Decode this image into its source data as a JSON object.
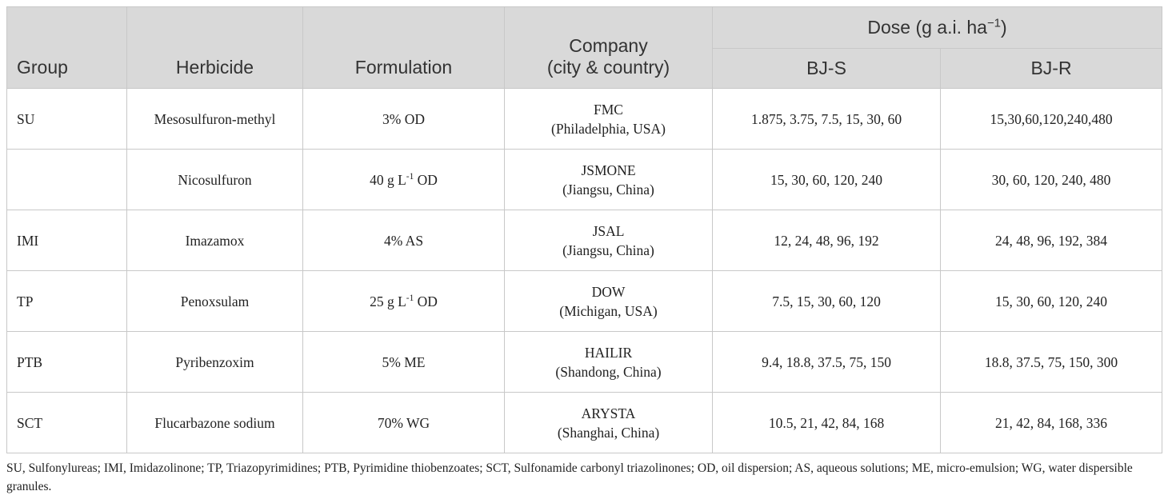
{
  "table": {
    "header": {
      "group": "Group",
      "herbicide": "Herbicide",
      "formulation": "Formulation",
      "company": [
        "Company",
        "(city & country)"
      ],
      "dose": {
        "text": "Dose (g a.i. ha",
        "sup": "−1",
        "end": ")"
      },
      "bj_s": "BJ-S",
      "bj_r": "BJ-R"
    },
    "rows": [
      [
        "SU",
        "Mesosulfuron-methyl",
        "3% OD",
        [
          "FMC",
          "(Philadelphia, USA)"
        ],
        "1.875, 3.75, 7.5, 15, 30, 60",
        "15,30,60,120,240,480"
      ],
      [
        null,
        "Nicosulfuron",
        {
          "text": "40 g L",
          "sup": "-1",
          "end": " OD"
        },
        [
          "JSMONE",
          "(Jiangsu, China)"
        ],
        "15, 30, 60, 120, 240",
        "30, 60, 120, 240, 480"
      ],
      [
        "IMI",
        "Imazamox",
        "4% AS",
        [
          "JSAL",
          "(Jiangsu, China)"
        ],
        "12, 24, 48, 96, 192",
        "24, 48, 96, 192, 384"
      ],
      [
        "TP",
        "Penoxsulam",
        {
          "text": "25 g L",
          "sup": "-1",
          "end": " OD"
        },
        [
          "DOW",
          "(Michigan, USA)"
        ],
        "7.5, 15, 30, 60, 120",
        "15, 30, 60, 120, 240"
      ],
      [
        "PTB",
        "Pyribenzoxim",
        "5% ME",
        [
          "HAILIR",
          "(Shandong, China)"
        ],
        "9.4, 18.8, 37.5, 75, 150",
        "18.8, 37.5, 75, 150, 300"
      ],
      [
        "SCT",
        "Flucarbazone sodium",
        "70% WG",
        [
          "ARYSTA",
          "(Shanghai, China)"
        ],
        "10.5, 21, 42, 84, 168",
        "21, 42, 84, 168, 336"
      ]
    ]
  },
  "footnote": "SU, Sulfonylureas; IMI, Imidazolinone; TP, Triazopyrimidines; PTB, Pyrimidine thiobenzoates; SCT, Sulfonamide carbonyl triazolinones; OD, oil dispersion; AS, aqueous solutions; ME, micro-emulsion; WG, water dispersible granules."
}
